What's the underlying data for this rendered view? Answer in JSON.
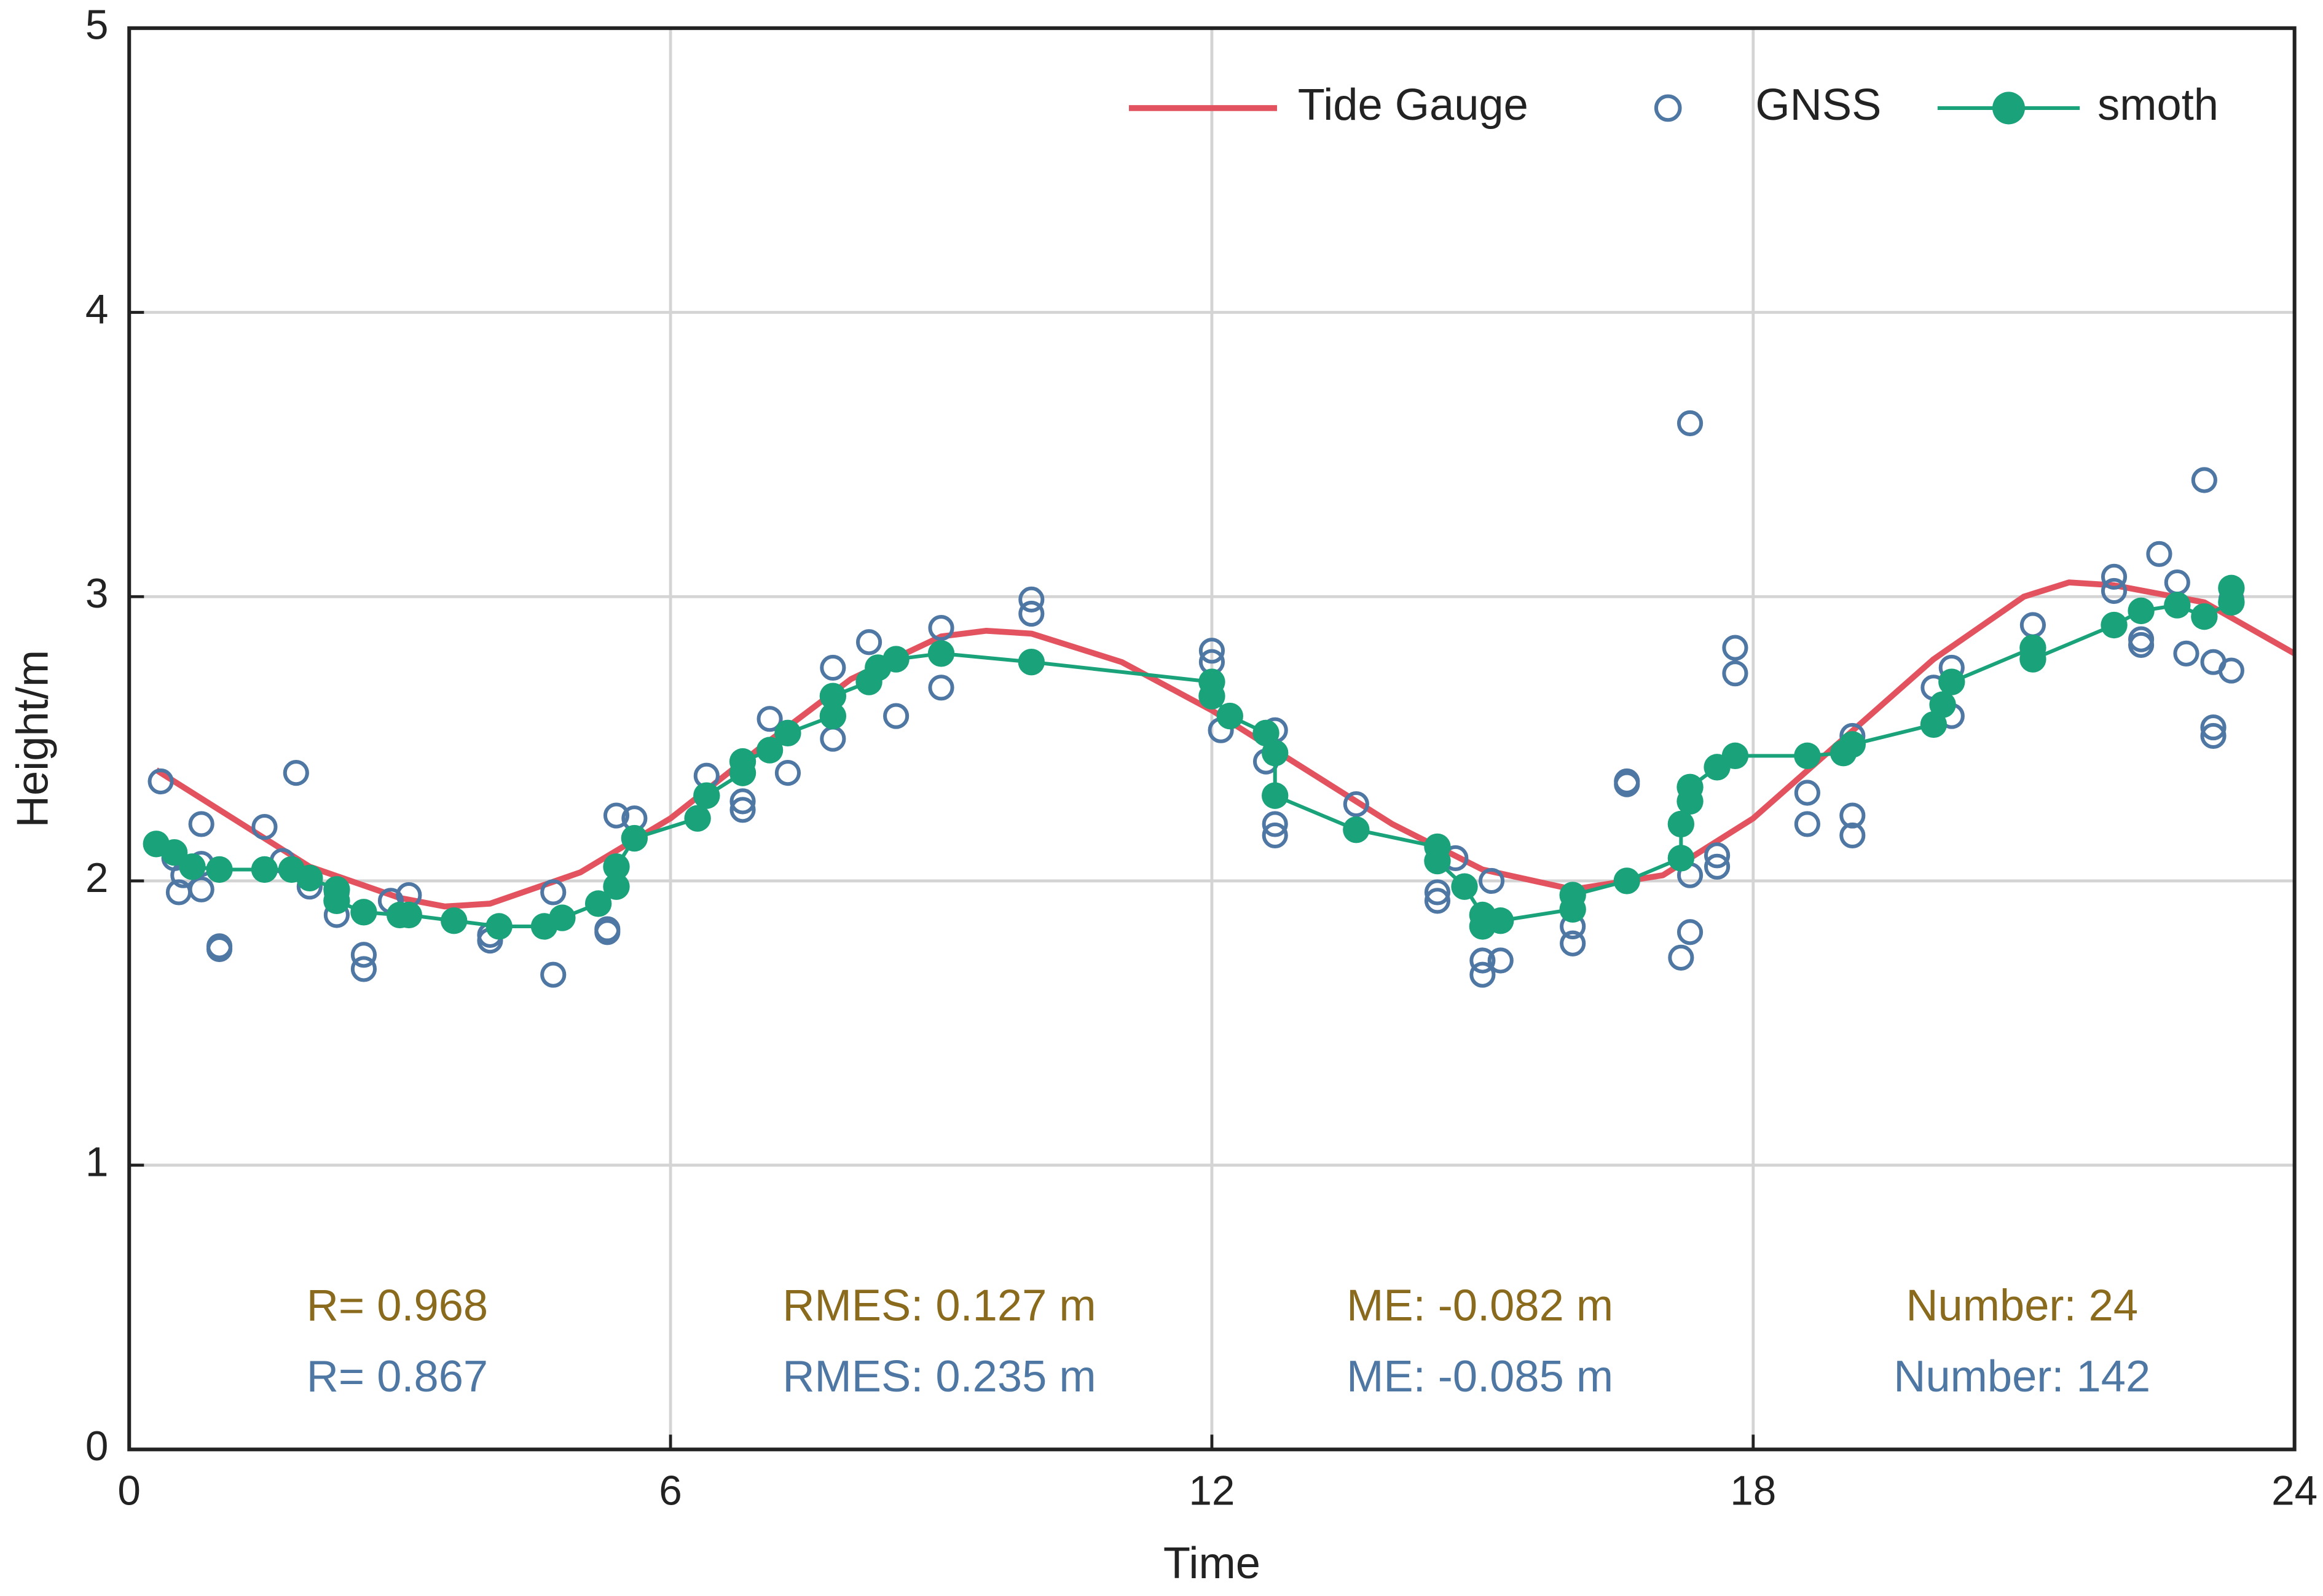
{
  "chart_data": {
    "type": "line",
    "x_label": "Time",
    "y_label": "Height/m",
    "xlim": [
      0,
      24
    ],
    "xticks": [
      0,
      6,
      12,
      18,
      24
    ],
    "ylim": [
      0,
      5
    ],
    "yticks": [
      0,
      1,
      2,
      3,
      4,
      5
    ],
    "grid": true,
    "legend": "upper right",
    "series": [
      {
        "name": "Tide Gauge",
        "style": "line",
        "color": "#e2535f",
        "x": [
          0.3,
          1,
          2,
          3,
          3.5,
          4,
          5,
          6,
          7,
          8,
          9,
          9.5,
          10,
          11,
          12,
          13,
          14,
          15,
          16,
          17,
          18,
          19,
          20,
          21,
          21.5,
          22,
          23,
          24
        ],
        "values": [
          2.39,
          2.25,
          2.05,
          1.94,
          1.91,
          1.92,
          2.03,
          2.22,
          2.47,
          2.71,
          2.86,
          2.88,
          2.87,
          2.77,
          2.6,
          2.4,
          2.2,
          2.04,
          1.97,
          2.02,
          2.22,
          2.5,
          2.78,
          3.0,
          3.05,
          3.04,
          2.98,
          2.8
        ]
      },
      {
        "name": "GNSS",
        "style": "scatter",
        "color": "#4e77a3",
        "x": [
          0.35,
          0.5,
          0.55,
          0.6,
          0.8,
          0.8,
          0.8,
          1,
          1,
          1.5,
          1.7,
          1.85,
          2,
          2.3,
          2.3,
          2.6,
          2.6,
          2.9,
          3.1,
          4,
          4,
          4.7,
          4.7,
          5.3,
          5.3,
          5.4,
          5.6,
          6.4,
          6.8,
          6.8,
          7.1,
          7.3,
          7.8,
          7.8,
          8.2,
          8.5,
          9,
          9,
          10,
          10,
          12,
          12,
          12.1,
          12.6,
          12.7,
          12.7,
          12.7,
          13.6,
          14.5,
          14.5,
          14.7,
          15,
          15,
          15.1,
          15.2,
          16,
          16,
          16.6,
          16.6,
          17.2,
          17.3,
          17.3,
          17.3,
          17.6,
          17.6,
          17.8,
          17.8,
          18.6,
          18.6,
          19.1,
          19.1,
          19.1,
          20,
          20.2,
          20.2,
          21.1,
          22,
          22,
          22.3,
          22.3,
          22.5,
          22.7,
          22.8,
          23,
          23.1,
          23.1,
          23.1,
          23.3,
          23.3
        ],
        "values": [
          2.35,
          2.08,
          1.96,
          2.02,
          2.2,
          1.97,
          2.06,
          1.77,
          1.76,
          2.19,
          2.07,
          2.38,
          1.98,
          1.88,
          1.96,
          1.74,
          1.69,
          1.93,
          1.95,
          1.79,
          1.81,
          1.96,
          1.67,
          1.82,
          1.83,
          2.23,
          2.22,
          2.37,
          2.25,
          2.28,
          2.57,
          2.38,
          2.75,
          2.5,
          2.84,
          2.58,
          2.89,
          2.68,
          2.99,
          2.94,
          2.81,
          2.77,
          2.53,
          2.42,
          2.53,
          2.16,
          2.2,
          2.27,
          1.93,
          1.96,
          2.08,
          1.67,
          1.72,
          2.0,
          1.72,
          1.78,
          1.84,
          2.34,
          2.35,
          1.73,
          1.82,
          3.61,
          2.02,
          2.05,
          2.09,
          2.82,
          2.73,
          2.2,
          2.31,
          2.51,
          2.23,
          2.16,
          2.68,
          2.58,
          2.75,
          2.9,
          3.07,
          3.02,
          2.85,
          2.83,
          3.15,
          3.05,
          2.8,
          3.41,
          2.77,
          2.54,
          2.51,
          2.74,
          2.99
        ]
      },
      {
        "name": "smoth",
        "style": "line-marker",
        "color": "#1aa37a",
        "x": [
          0.3,
          0.5,
          0.7,
          1,
          1.5,
          1.8,
          2,
          2.3,
          2.3,
          2.6,
          3,
          3.1,
          3.6,
          4.1,
          4.6,
          4.8,
          5.2,
          5.4,
          5.4,
          5.6,
          6.3,
          6.4,
          6.8,
          6.8,
          7.1,
          7.3,
          7.8,
          7.8,
          8.2,
          8.3,
          8.5,
          9,
          10,
          12,
          12,
          12.2,
          12.6,
          12.7,
          12.7,
          13.6,
          14.5,
          14.5,
          14.8,
          15,
          15,
          15.2,
          16,
          16,
          16.6,
          17.2,
          17.2,
          17.3,
          17.3,
          17.6,
          17.8,
          18.6,
          19,
          19.1,
          20,
          20.1,
          20.2,
          21.1,
          21.1,
          22,
          22.3,
          22.7,
          23,
          23.3,
          23.3
        ],
        "values": [
          2.13,
          2.1,
          2.05,
          2.04,
          2.04,
          2.04,
          2.01,
          1.97,
          1.93,
          1.89,
          1.88,
          1.88,
          1.86,
          1.84,
          1.84,
          1.87,
          1.92,
          1.98,
          2.05,
          2.15,
          2.22,
          2.3,
          2.38,
          2.42,
          2.46,
          2.52,
          2.58,
          2.65,
          2.7,
          2.75,
          2.78,
          2.8,
          2.77,
          2.7,
          2.65,
          2.58,
          2.52,
          2.45,
          2.3,
          2.18,
          2.12,
          2.07,
          1.98,
          1.88,
          1.84,
          1.86,
          1.9,
          1.95,
          2.0,
          2.08,
          2.2,
          2.28,
          2.33,
          2.4,
          2.44,
          2.44,
          2.45,
          2.48,
          2.55,
          2.62,
          2.7,
          2.82,
          2.78,
          2.9,
          2.95,
          2.97,
          2.93,
          2.98,
          3.03
        ]
      }
    ],
    "annotations": [
      {
        "text": "R= 0.968",
        "color": "#8a6a1c"
      },
      {
        "text": "RMES: 0.127 m",
        "color": "#8a6a1c"
      },
      {
        "text": "ME: -0.082 m",
        "color": "#8a6a1c"
      },
      {
        "text": "Number: 24",
        "color": "#8a6a1c"
      },
      {
        "text": "R= 0.867",
        "color": "#4e77a3"
      },
      {
        "text": "RMES: 0.235 m",
        "color": "#4e77a3"
      },
      {
        "text": "ME: -0.085 m",
        "color": "#4e77a3"
      },
      {
        "text": "Number: 142",
        "color": "#4e77a3"
      }
    ]
  }
}
